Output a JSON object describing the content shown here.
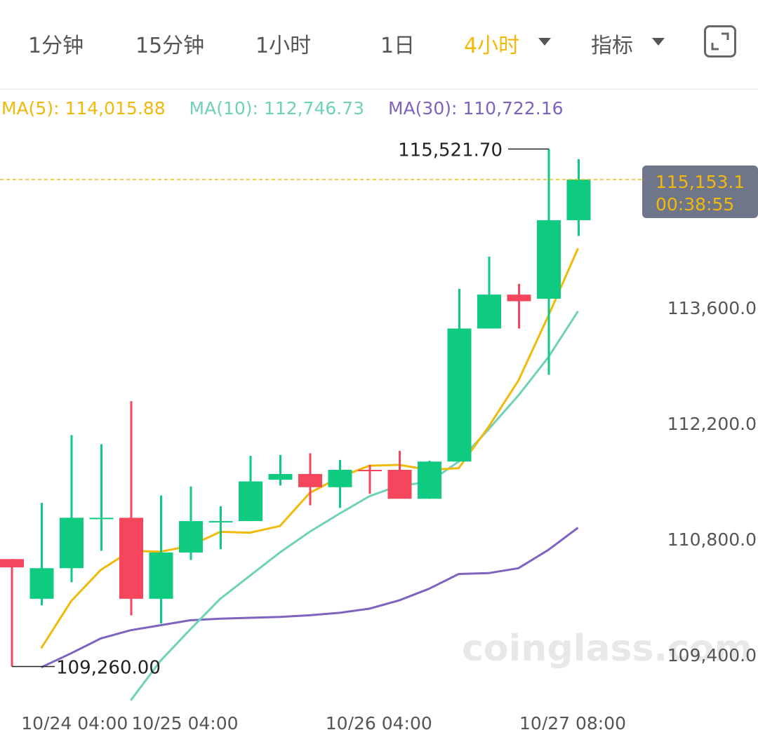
{
  "toolbar": {
    "tabs": [
      "1分钟",
      "15分钟",
      "1小时",
      "1日",
      "4小时"
    ],
    "active_tab": "4小时",
    "indicator_label": "指标",
    "accent_color": "#f0b90b"
  },
  "ma_legend": {
    "ma5": "MA(5): 114,015.88",
    "ma10": "MA(10): 112,746.73",
    "ma30": "MA(30): 110,722.16"
  },
  "watermark": "coinglass.com",
  "chart_data": {
    "type": "candlestick",
    "colors": {
      "up": "#0ecb81",
      "down": "#f6465d",
      "ma5": "#f0b90b",
      "ma10": "#6fd1b7",
      "ma30": "#7e63bf"
    },
    "y_ticks": [
      "113,600.0",
      "112,200.0",
      "110,800.0",
      "109,400.0"
    ],
    "y_tick_values": [
      113600,
      112200,
      110800,
      109400
    ],
    "x_ticks": [
      "10/24 04:00",
      "10/25 04:00",
      "10/26 04:00",
      "10/27 08:00"
    ],
    "x_tick_indices": [
      2.1,
      5.8,
      12.3,
      18.8
    ],
    "high_label": "115,521.70",
    "low_label": "109,260.00",
    "current_price": "115,153.1",
    "countdown": "00:38:55",
    "candles": [
      {
        "o": 110560,
        "h": 110560,
        "l": 109260,
        "c": 110460
      },
      {
        "o": 110080,
        "h": 111240,
        "l": 110000,
        "c": 110450
      },
      {
        "o": 110450,
        "h": 112060,
        "l": 110280,
        "c": 111060
      },
      {
        "o": 111060,
        "h": 111950,
        "l": 110660,
        "c": 111060
      },
      {
        "o": 111060,
        "h": 112470,
        "l": 109880,
        "c": 110080
      },
      {
        "o": 110080,
        "h": 111330,
        "l": 109780,
        "c": 110640
      },
      {
        "o": 110640,
        "h": 111440,
        "l": 110550,
        "c": 111020
      },
      {
        "o": 111020,
        "h": 111200,
        "l": 110680,
        "c": 111020
      },
      {
        "o": 111020,
        "h": 111810,
        "l": 111020,
        "c": 111500
      },
      {
        "o": 111520,
        "h": 111820,
        "l": 111450,
        "c": 111590
      },
      {
        "o": 111590,
        "h": 111840,
        "l": 111210,
        "c": 111430
      },
      {
        "o": 111430,
        "h": 111760,
        "l": 111180,
        "c": 111640
      },
      {
        "o": 111640,
        "h": 111700,
        "l": 111350,
        "c": 111630
      },
      {
        "o": 111640,
        "h": 111870,
        "l": 111310,
        "c": 111290
      },
      {
        "o": 111290,
        "h": 111750,
        "l": 111290,
        "c": 111740
      },
      {
        "o": 111740,
        "h": 113830,
        "l": 111740,
        "c": 113350
      },
      {
        "o": 113350,
        "h": 114220,
        "l": 113350,
        "c": 113760
      },
      {
        "o": 113760,
        "h": 113890,
        "l": 113350,
        "c": 113680
      },
      {
        "o": 113710,
        "h": 115521.7,
        "l": 112790,
        "c": 114660
      },
      {
        "o": 114660,
        "h": 115400,
        "l": 114470,
        "c": 115153.1
      }
    ],
    "ma5": [
      109480,
      110050,
      110430,
      110660,
      110650,
      110720,
      110890,
      110880,
      110960,
      111360,
      111550,
      111690,
      111700,
      111640,
      111660,
      112160,
      112720,
      113500,
      114320
    ],
    "ma10": [
      108850,
      109330,
      109710,
      110080,
      110360,
      110640,
      110890,
      111110,
      111320,
      111450,
      111490,
      111740,
      112130,
      112540,
      113000,
      113560
    ],
    "ma30": [
      109250,
      109420,
      109600,
      109700,
      109760,
      109820,
      109840,
      109850,
      109860,
      109880,
      109910,
      109960,
      110060,
      110200,
      110380,
      110390,
      110450,
      110670,
      110940
    ]
  }
}
